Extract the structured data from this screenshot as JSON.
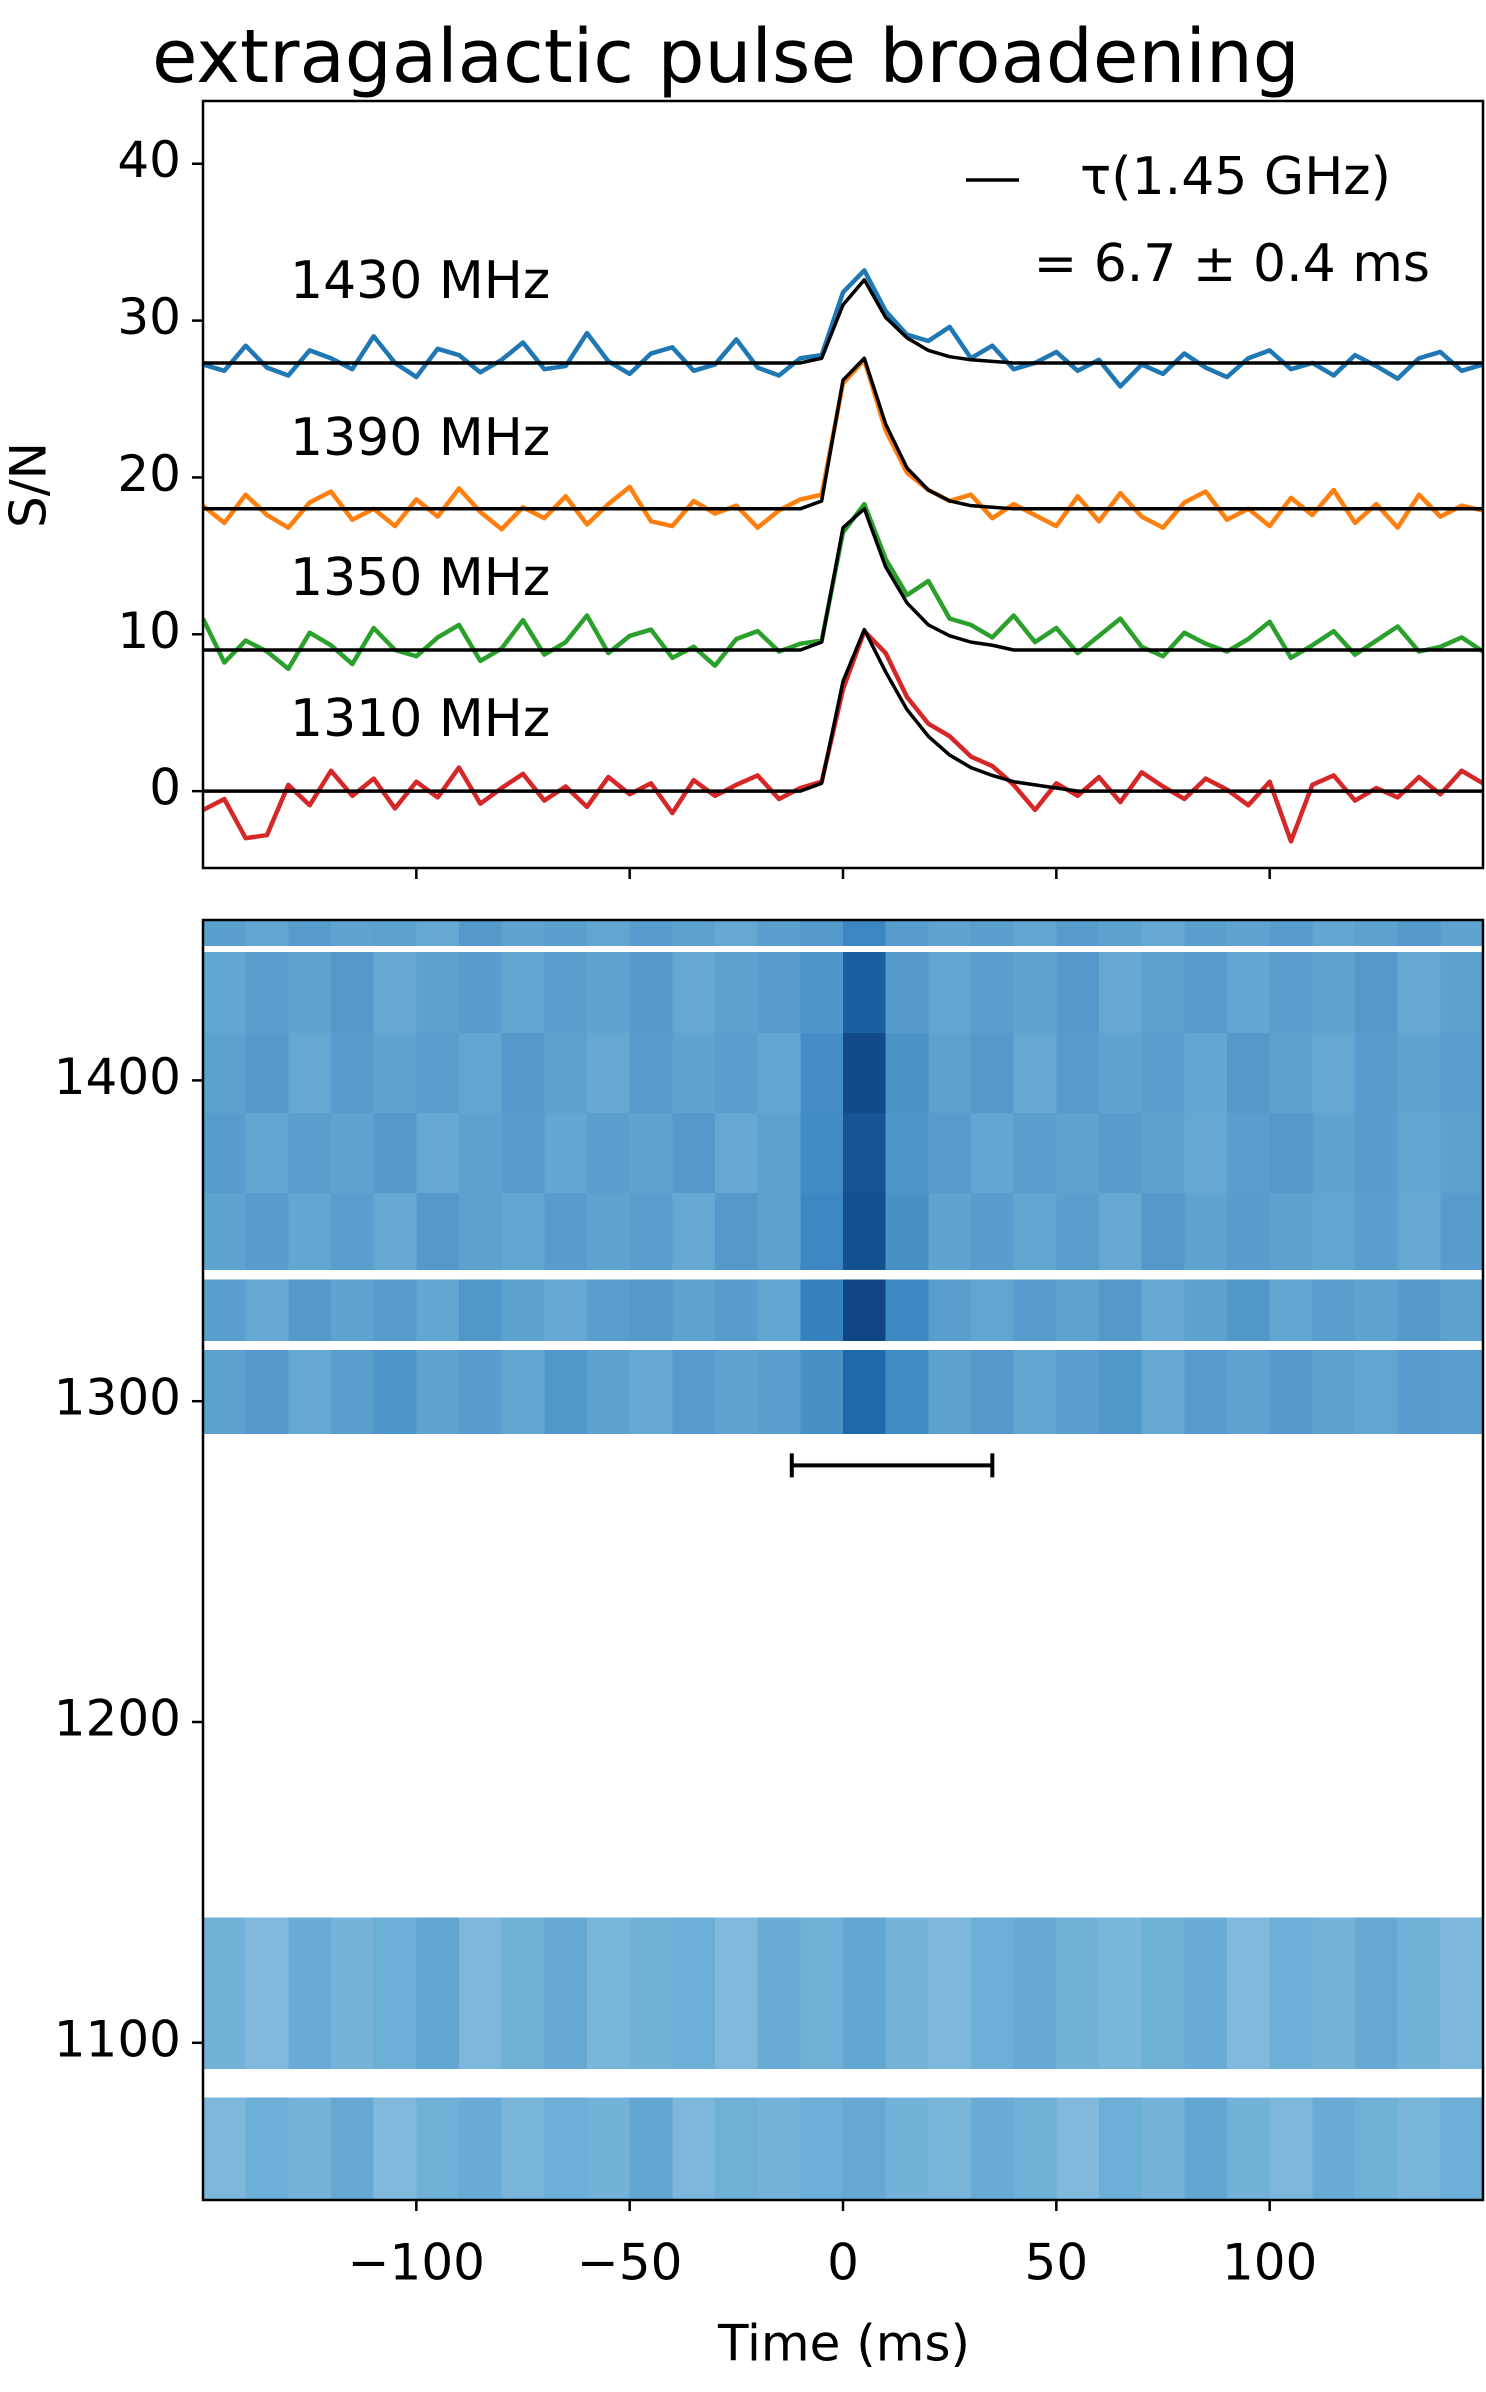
{
  "chart_data": [
    {
      "type": "line",
      "title": "extragalactic pulse broadening",
      "ylabel": "S/N",
      "xlim": [
        -150,
        150
      ],
      "ylim": [
        -4.9,
        44
      ],
      "xticks": [
        -100,
        -50,
        0,
        50,
        100
      ],
      "yticks": [
        0,
        10,
        20,
        30,
        40
      ],
      "x": [
        -150,
        -145,
        -140,
        -135,
        -130,
        -125,
        -120,
        -115,
        -110,
        -105,
        -100,
        -95,
        -90,
        -85,
        -80,
        -75,
        -70,
        -65,
        -60,
        -55,
        -50,
        -45,
        -40,
        -35,
        -30,
        -25,
        -20,
        -15,
        -10,
        -5,
        0,
        5,
        10,
        15,
        20,
        25,
        30,
        35,
        40,
        45,
        50,
        55,
        60,
        65,
        70,
        75,
        80,
        85,
        90,
        95,
        100,
        105,
        110,
        115,
        120,
        125,
        130,
        135,
        140,
        145,
        150
      ],
      "series": [
        {
          "name": "1430 MHz",
          "color": "#1f77b4",
          "values": [
            27.2,
            26.8,
            28.4,
            27.0,
            26.5,
            28.1,
            27.6,
            26.9,
            29.0,
            27.3,
            26.4,
            28.2,
            27.8,
            26.7,
            27.5,
            28.6,
            26.9,
            27.1,
            29.2,
            27.4,
            26.6,
            27.9,
            28.3,
            26.8,
            27.2,
            28.8,
            27.0,
            26.5,
            27.6,
            27.8,
            31.8,
            33.2,
            30.6,
            29.1,
            28.7,
            29.6,
            27.6,
            28.4,
            26.9,
            27.3,
            28.0,
            26.8,
            27.5,
            25.8,
            27.2,
            26.6,
            27.9,
            27.0,
            26.4,
            27.6,
            28.1,
            26.9,
            27.3,
            26.5,
            27.8,
            27.1,
            26.3,
            27.6,
            28.0,
            26.8,
            27.2
          ]
        },
        {
          "name": "1390 MHz",
          "color": "#ff7f0e",
          "values": [
            18.2,
            17.1,
            18.9,
            17.6,
            16.8,
            18.4,
            19.1,
            17.3,
            18.0,
            16.9,
            18.6,
            17.5,
            19.3,
            17.8,
            16.7,
            18.1,
            17.4,
            18.8,
            17.0,
            18.3,
            19.4,
            17.2,
            16.9,
            18.5,
            17.7,
            18.2,
            16.8,
            17.9,
            18.6,
            18.9,
            26.0,
            27.5,
            23.0,
            20.3,
            19.2,
            18.5,
            18.9,
            17.4,
            18.3,
            17.6,
            16.9,
            18.8,
            17.2,
            19.0,
            17.5,
            16.8,
            18.4,
            19.1,
            17.3,
            18.0,
            16.9,
            18.7,
            17.6,
            19.2,
            17.1,
            18.3,
            16.8,
            18.9,
            17.5,
            18.2,
            17.9
          ]
        },
        {
          "name": "1350 MHz",
          "color": "#2ca02c",
          "values": [
            11.0,
            8.2,
            9.6,
            8.9,
            7.8,
            10.1,
            9.3,
            8.1,
            10.4,
            9.0,
            8.6,
            9.8,
            10.6,
            8.3,
            9.1,
            10.9,
            8.7,
            9.5,
            11.2,
            8.8,
            9.9,
            10.3,
            8.5,
            9.2,
            8.0,
            9.7,
            10.2,
            8.9,
            9.4,
            9.6,
            16.5,
            18.3,
            14.8,
            12.5,
            13.4,
            11.0,
            10.6,
            9.8,
            11.2,
            9.5,
            10.4,
            8.8,
            9.9,
            11.0,
            9.2,
            8.6,
            10.1,
            9.4,
            8.9,
            9.7,
            10.8,
            8.5,
            9.3,
            10.2,
            8.7,
            9.6,
            10.5,
            8.9,
            9.2,
            9.8,
            8.9
          ]
        },
        {
          "name": "1310 MHz",
          "color": "#d62728",
          "values": [
            -1.2,
            -0.5,
            -3.0,
            -2.8,
            0.4,
            -0.9,
            1.3,
            -0.3,
            0.8,
            -1.1,
            0.6,
            -0.4,
            1.5,
            -0.8,
            0.2,
            1.1,
            -0.6,
            0.3,
            -1.0,
            0.9,
            -0.2,
            0.5,
            -1.4,
            0.7,
            -0.3,
            0.4,
            1.0,
            -0.5,
            0.2,
            0.6,
            6.5,
            10.2,
            8.8,
            6.0,
            4.3,
            3.5,
            2.2,
            1.6,
            0.4,
            -1.2,
            0.5,
            -0.3,
            0.9,
            -0.7,
            1.2,
            0.3,
            -0.5,
            0.8,
            0.1,
            -0.9,
            0.6,
            -3.2,
            0.4,
            1.0,
            -0.6,
            0.2,
            -0.4,
            0.9,
            -0.2,
            1.3,
            0.5
          ]
        }
      ],
      "fit_color": "#000000",
      "fit_label": "τ(1.45 GHz)",
      "fit_label_2": "= 6.7 ± 0.4 ms",
      "fits": [
        {
          "values": [
            27.3,
            27.3,
            27.3,
            27.3,
            27.3,
            27.3,
            27.3,
            27.3,
            27.3,
            27.3,
            27.3,
            27.3,
            27.3,
            27.3,
            27.3,
            27.3,
            27.3,
            27.3,
            27.3,
            27.3,
            27.3,
            27.3,
            27.3,
            27.3,
            27.3,
            27.3,
            27.3,
            27.3,
            27.3,
            27.6,
            31.0,
            32.6,
            30.2,
            28.9,
            28.1,
            27.7,
            27.5,
            27.4,
            27.3,
            27.3,
            27.3,
            27.3,
            27.3,
            27.3,
            27.3,
            27.3,
            27.3,
            27.3,
            27.3,
            27.3,
            27.3,
            27.3,
            27.3,
            27.3,
            27.3,
            27.3,
            27.3,
            27.3,
            27.3,
            27.3,
            27.3
          ]
        },
        {
          "values": [
            18.0,
            18.0,
            18.0,
            18.0,
            18.0,
            18.0,
            18.0,
            18.0,
            18.0,
            18.0,
            18.0,
            18.0,
            18.0,
            18.0,
            18.0,
            18.0,
            18.0,
            18.0,
            18.0,
            18.0,
            18.0,
            18.0,
            18.0,
            18.0,
            18.0,
            18.0,
            18.0,
            18.0,
            18.0,
            18.5,
            26.2,
            27.6,
            23.4,
            20.6,
            19.2,
            18.5,
            18.2,
            18.1,
            18.0,
            18.0,
            18.0,
            18.0,
            18.0,
            18.0,
            18.0,
            18.0,
            18.0,
            18.0,
            18.0,
            18.0,
            18.0,
            18.0,
            18.0,
            18.0,
            18.0,
            18.0,
            18.0,
            18.0,
            18.0,
            18.0,
            18.0
          ]
        },
        {
          "values": [
            9.0,
            9.0,
            9.0,
            9.0,
            9.0,
            9.0,
            9.0,
            9.0,
            9.0,
            9.0,
            9.0,
            9.0,
            9.0,
            9.0,
            9.0,
            9.0,
            9.0,
            9.0,
            9.0,
            9.0,
            9.0,
            9.0,
            9.0,
            9.0,
            9.0,
            9.0,
            9.0,
            9.0,
            9.0,
            9.5,
            16.8,
            18.0,
            14.3,
            12.0,
            10.6,
            9.9,
            9.5,
            9.3,
            9.0,
            9.0,
            9.0,
            9.0,
            9.0,
            9.0,
            9.0,
            9.0,
            9.0,
            9.0,
            9.0,
            9.0,
            9.0,
            9.0,
            9.0,
            9.0,
            9.0,
            9.0,
            9.0,
            9.0,
            9.0,
            9.0,
            9.0
          ]
        },
        {
          "values": [
            0,
            0,
            0,
            0,
            0,
            0,
            0,
            0,
            0,
            0,
            0,
            0,
            0,
            0,
            0,
            0,
            0,
            0,
            0,
            0,
            0,
            0,
            0,
            0,
            0,
            0,
            0,
            0,
            0,
            0.5,
            7.0,
            10.3,
            7.6,
            5.2,
            3.5,
            2.3,
            1.5,
            1.0,
            0.6,
            0.4,
            0.2,
            0,
            0,
            0,
            0,
            0,
            0,
            0,
            0,
            0,
            0,
            0,
            0,
            0,
            0,
            0,
            0,
            0,
            0,
            0,
            0
          ]
        }
      ]
    },
    {
      "type": "heatmap",
      "xlabel": "Time (ms)",
      "xlim": [
        -150,
        150
      ],
      "ylim": [
        1051,
        1450
      ],
      "xticks": [
        {
          "value": -100,
          "label": "−100"
        },
        {
          "value": -50,
          "label": "−50"
        },
        0,
        50,
        100
      ],
      "yticks": [
        1100,
        1200,
        1300,
        1400
      ],
      "colormap": "Blues",
      "zlim": [
        0,
        1
      ],
      "xbins": [
        -150,
        -140,
        -130,
        -120,
        -110,
        -100,
        -90,
        -80,
        -70,
        -60,
        -50,
        -40,
        -30,
        -20,
        -10,
        0,
        10,
        20,
        30,
        40,
        50,
        60,
        70,
        80,
        90,
        100,
        110,
        120,
        130,
        140,
        150
      ],
      "ybins": [
        1051,
        1083,
        1092,
        1139,
        1290,
        1316,
        1319,
        1338,
        1341,
        1365,
        1390,
        1415,
        1440,
        1442,
        1450
      ],
      "values": [
        [
          0.45,
          0.5,
          0.47,
          0.52,
          0.44,
          0.49,
          0.51,
          0.46,
          0.5,
          0.48,
          0.53,
          0.45,
          0.49,
          0.47,
          0.5,
          0.52,
          0.48,
          0.46,
          0.51,
          0.49,
          0.44,
          0.5,
          0.47,
          0.53,
          0.48,
          0.45,
          0.51,
          0.49,
          0.46,
          0.5
        ],
        [
          null,
          null,
          null,
          null,
          null,
          null,
          null,
          null,
          null,
          null,
          null,
          null,
          null,
          null,
          null,
          null,
          null,
          null,
          null,
          null,
          null,
          null,
          null,
          null,
          null,
          null,
          null,
          null,
          null,
          null
        ],
        [
          0.48,
          0.44,
          0.51,
          0.47,
          0.5,
          0.53,
          0.45,
          0.49,
          0.52,
          0.46,
          0.48,
          0.5,
          0.44,
          0.51,
          0.49,
          0.53,
          0.47,
          0.45,
          0.5,
          0.52,
          0.48,
          0.46,
          0.49,
          0.51,
          0.44,
          0.5,
          0.47,
          0.52,
          0.48,
          0.45
        ],
        [
          null,
          null,
          null,
          null,
          null,
          null,
          null,
          null,
          null,
          null,
          null,
          null,
          null,
          null,
          null,
          null,
          null,
          null,
          null,
          null,
          null,
          null,
          null,
          null,
          null,
          null,
          null,
          null,
          null,
          null
        ],
        [
          0.55,
          0.58,
          0.52,
          0.56,
          0.6,
          0.54,
          0.57,
          0.53,
          0.59,
          0.55,
          0.52,
          0.57,
          0.54,
          0.56,
          0.62,
          0.78,
          0.64,
          0.55,
          0.58,
          0.53,
          0.56,
          0.59,
          0.52,
          0.57,
          0.54,
          0.58,
          0.55,
          0.53,
          0.57,
          0.56
        ],
        [
          null,
          null,
          null,
          null,
          null,
          null,
          null,
          null,
          null,
          null,
          null,
          null,
          null,
          null,
          null,
          null,
          null,
          null,
          null,
          null,
          null,
          null,
          null,
          null,
          null,
          null,
          null,
          null,
          null,
          null
        ],
        [
          0.56,
          0.52,
          0.58,
          0.54,
          0.57,
          0.53,
          0.59,
          0.55,
          0.52,
          0.56,
          0.58,
          0.54,
          0.57,
          0.53,
          0.68,
          0.92,
          0.66,
          0.56,
          0.53,
          0.57,
          0.54,
          0.58,
          0.52,
          0.55,
          0.59,
          0.53,
          0.56,
          0.54,
          0.58,
          0.55
        ],
        [
          null,
          null,
          null,
          null,
          null,
          null,
          null,
          null,
          null,
          null,
          null,
          null,
          null,
          null,
          null,
          null,
          null,
          null,
          null,
          null,
          null,
          null,
          null,
          null,
          null,
          null,
          null,
          null,
          null,
          null
        ],
        [
          0.54,
          0.57,
          0.53,
          0.56,
          0.52,
          0.58,
          0.55,
          0.53,
          0.57,
          0.54,
          0.56,
          0.52,
          0.58,
          0.55,
          0.66,
          0.88,
          0.62,
          0.54,
          0.57,
          0.53,
          0.56,
          0.52,
          0.58,
          0.54,
          0.57,
          0.55,
          0.53,
          0.56,
          0.52,
          0.57
        ],
        [
          0.57,
          0.53,
          0.56,
          0.54,
          0.58,
          0.52,
          0.55,
          0.57,
          0.53,
          0.56,
          0.54,
          0.58,
          0.52,
          0.55,
          0.64,
          0.86,
          0.6,
          0.57,
          0.53,
          0.56,
          0.54,
          0.57,
          0.55,
          0.52,
          0.56,
          0.58,
          0.54,
          0.57,
          0.53,
          0.55
        ],
        [
          0.55,
          0.58,
          0.52,
          0.57,
          0.54,
          0.56,
          0.53,
          0.58,
          0.55,
          0.52,
          0.57,
          0.54,
          0.56,
          0.53,
          0.63,
          0.9,
          0.61,
          0.55,
          0.58,
          0.52,
          0.57,
          0.54,
          0.56,
          0.53,
          0.58,
          0.55,
          0.52,
          0.57,
          0.54,
          0.56
        ],
        [
          0.53,
          0.56,
          0.54,
          0.58,
          0.52,
          0.55,
          0.57,
          0.53,
          0.56,
          0.54,
          0.58,
          0.52,
          0.55,
          0.57,
          0.6,
          0.82,
          0.58,
          0.53,
          0.56,
          0.54,
          0.58,
          0.52,
          0.55,
          0.57,
          0.53,
          0.56,
          0.54,
          0.58,
          0.52,
          0.55
        ],
        [
          null,
          null,
          null,
          null,
          null,
          null,
          null,
          null,
          null,
          null,
          null,
          null,
          null,
          null,
          null,
          null,
          null,
          null,
          null,
          null,
          null,
          null,
          null,
          null,
          null,
          null,
          null,
          null,
          null,
          null
        ],
        [
          0.56,
          0.53,
          0.57,
          0.54,
          0.55,
          0.52,
          0.58,
          0.54,
          0.56,
          0.53,
          0.57,
          0.55,
          0.52,
          0.56,
          0.58,
          0.66,
          0.57,
          0.54,
          0.56,
          0.53,
          0.57,
          0.55,
          0.52,
          0.56,
          0.54,
          0.57,
          0.53,
          0.55,
          0.58,
          0.54
        ]
      ],
      "errorbar": {
        "x": [
          -12,
          35
        ],
        "y": 1280,
        "color": "#000000"
      }
    }
  ]
}
